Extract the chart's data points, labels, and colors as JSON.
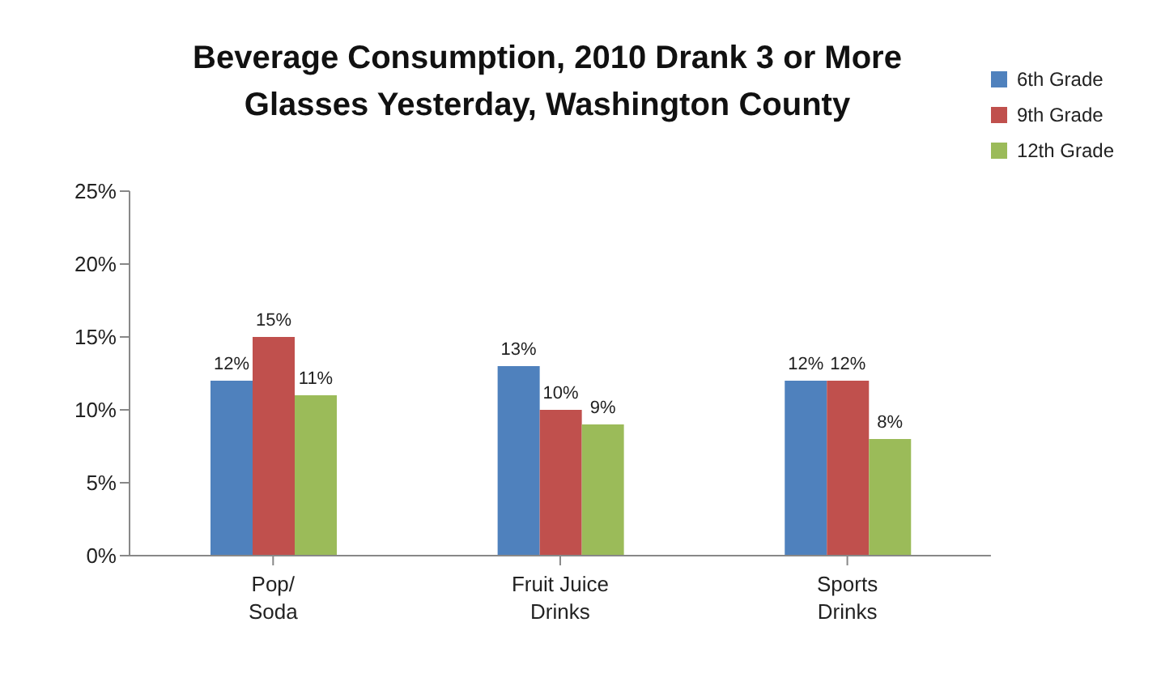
{
  "chart_data": {
    "type": "bar",
    "title": "Beverage Consumption, 2010 Drank 3 or More Glasses Yesterday, Washington County",
    "categories": [
      "Pop/\nSoda",
      "Fruit Juice\nDrinks",
      "Sports\nDrinks"
    ],
    "series": [
      {
        "name": "6th Grade",
        "color": "#4f81bd",
        "values": [
          12,
          13,
          12
        ],
        "value_labels": [
          "12%",
          "13%",
          "12%"
        ]
      },
      {
        "name": "9th Grade",
        "color": "#c0504d",
        "values": [
          15,
          10,
          12
        ],
        "value_labels": [
          "15%",
          "10%",
          "12%"
        ]
      },
      {
        "name": "12th Grade",
        "color": "#9bbb59",
        "values": [
          11,
          9,
          8
        ],
        "value_labels": [
          "11%",
          "9%",
          "8%"
        ]
      }
    ],
    "ylim": [
      0,
      25
    ],
    "yticks": [
      {
        "value": 0,
        "label": "0%"
      },
      {
        "value": 5,
        "label": "5%"
      },
      {
        "value": 10,
        "label": "10%"
      },
      {
        "value": 15,
        "label": "15%"
      },
      {
        "value": 20,
        "label": "20%"
      },
      {
        "value": 25,
        "label": "25%"
      }
    ],
    "grid": false,
    "legend": "top right"
  }
}
